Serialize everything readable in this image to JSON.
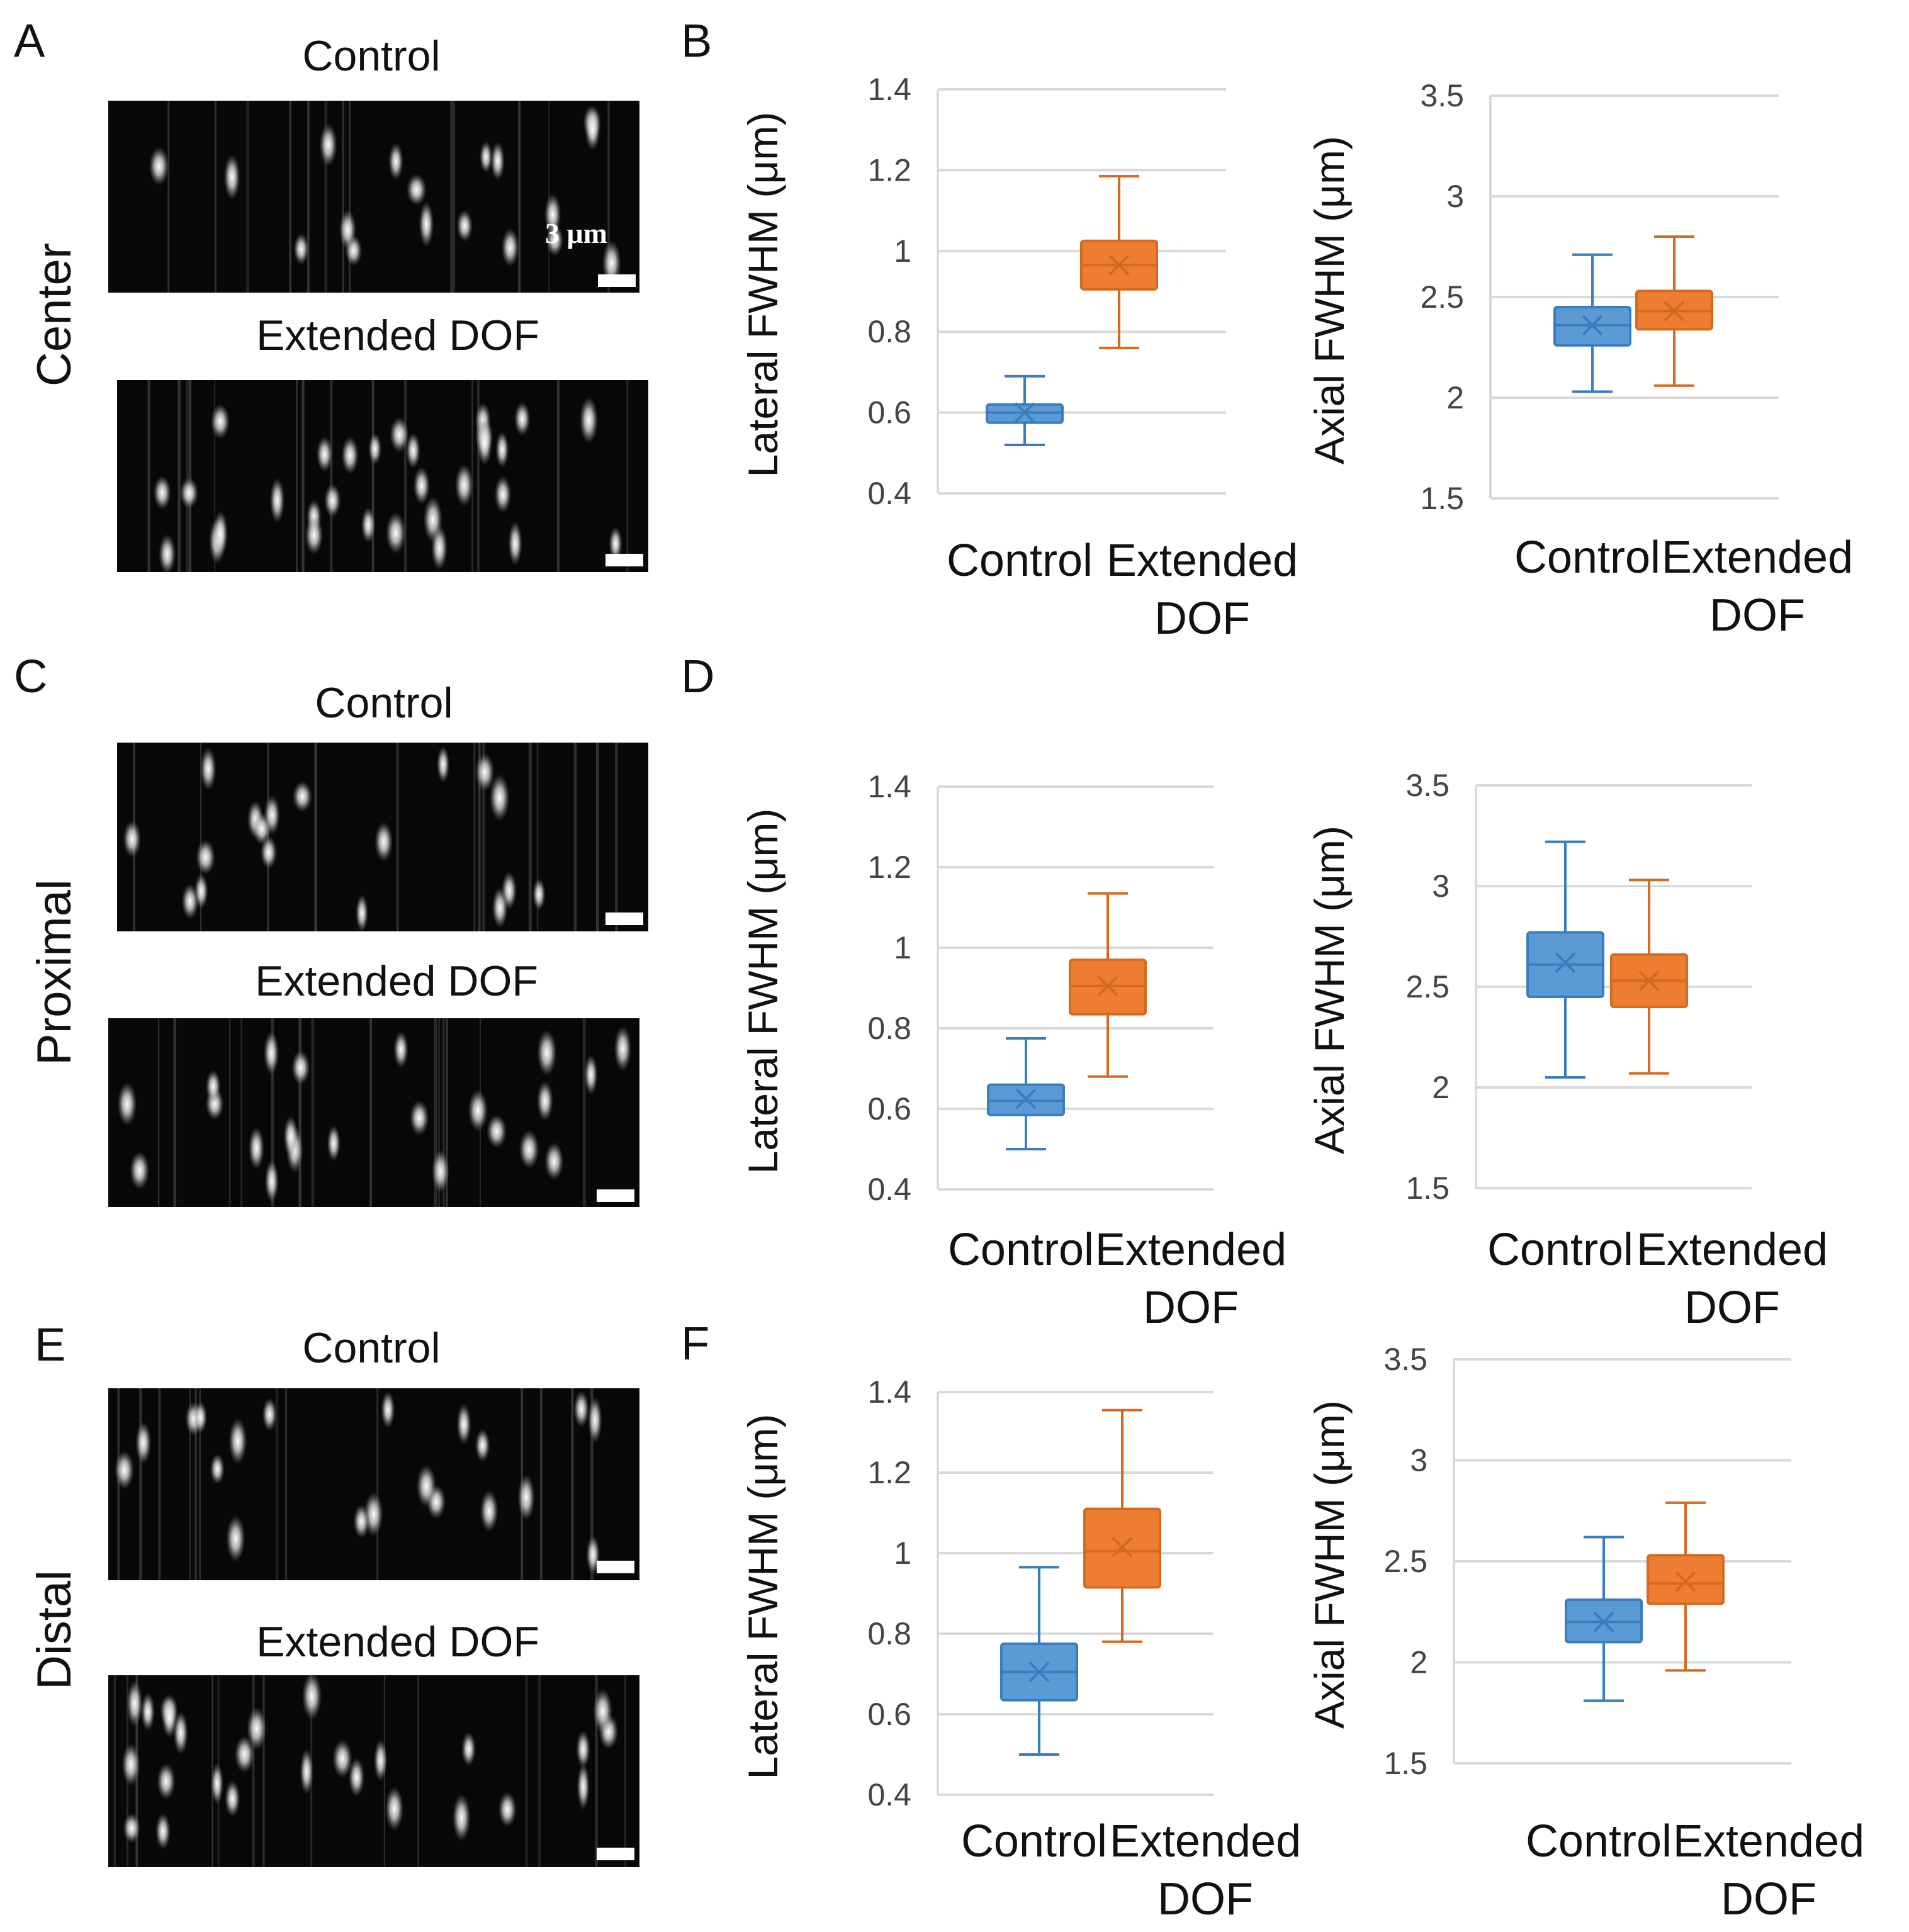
{
  "panel_letters": {
    "a": "A",
    "b": "B",
    "c": "C",
    "d": "D",
    "e": "E",
    "f": "F"
  },
  "row_labels": {
    "center": "Center",
    "proximal": "Proximal",
    "distal": "Distal"
  },
  "image_titles": {
    "control": "Control",
    "extended": "Extended DOF"
  },
  "scale_bar_label": "3 μm",
  "colors": {
    "control": "#5b9bd5",
    "extended": "#ed7d31",
    "control_line": "#3a7cc0",
    "extended_line": "#d46a1f"
  },
  "chart_data": [
    {
      "id": "B-lateral",
      "panel": "B",
      "type": "box",
      "ylabel": "Lateral FWHM (μm)",
      "ylim": [
        0.4,
        1.4
      ],
      "yticks": [
        "0.4",
        "0.6",
        "0.8",
        "1",
        "1.2",
        "1.4"
      ],
      "categories": [
        "Control",
        "Extended DOF"
      ],
      "boxes": [
        {
          "name": "Control",
          "min": 0.52,
          "q1": 0.575,
          "median": 0.6,
          "q3": 0.62,
          "max": 0.69,
          "mean": 0.6
        },
        {
          "name": "Extended DOF",
          "min": 0.76,
          "q1": 0.905,
          "median": 0.965,
          "q3": 1.025,
          "max": 1.185,
          "mean": 0.965
        }
      ]
    },
    {
      "id": "B-axial",
      "panel": "B",
      "type": "box",
      "ylabel": "Axial FWHM (μm)",
      "ylim": [
        1.5,
        3.5
      ],
      "yticks": [
        "1.5",
        "2",
        "2.5",
        "3",
        "3.5"
      ],
      "categories": [
        "Control",
        "Extended DOF"
      ],
      "boxes": [
        {
          "name": "Control",
          "min": 2.03,
          "q1": 2.26,
          "median": 2.36,
          "q3": 2.45,
          "max": 2.71,
          "mean": 2.36
        },
        {
          "name": "Extended DOF",
          "min": 2.06,
          "q1": 2.34,
          "median": 2.43,
          "q3": 2.53,
          "max": 2.8,
          "mean": 2.43
        }
      ]
    },
    {
      "id": "D-lateral",
      "panel": "D",
      "type": "box",
      "ylabel": "Lateral FWHM (μm)",
      "ylim": [
        0.4,
        1.4
      ],
      "yticks": [
        "0.4",
        "0.6",
        "0.8",
        "1",
        "1.2",
        "1.4"
      ],
      "categories": [
        "Control",
        "Extended DOF"
      ],
      "boxes": [
        {
          "name": "Control",
          "min": 0.5,
          "q1": 0.585,
          "median": 0.62,
          "q3": 0.66,
          "max": 0.775,
          "mean": 0.625
        },
        {
          "name": "Extended DOF",
          "min": 0.68,
          "q1": 0.835,
          "median": 0.905,
          "q3": 0.97,
          "max": 1.135,
          "mean": 0.905
        }
      ]
    },
    {
      "id": "D-axial",
      "panel": "D",
      "type": "box",
      "ylabel": "Axial FWHM (μm)",
      "ylim": [
        1.5,
        3.5
      ],
      "yticks": [
        "1.5",
        "2",
        "2.5",
        "3",
        "3.5"
      ],
      "categories": [
        "Control",
        "Extended DOF"
      ],
      "boxes": [
        {
          "name": "Control",
          "min": 2.05,
          "q1": 2.45,
          "median": 2.61,
          "q3": 2.77,
          "max": 3.22,
          "mean": 2.62
        },
        {
          "name": "Extended DOF",
          "min": 2.07,
          "q1": 2.4,
          "median": 2.53,
          "q3": 2.66,
          "max": 3.03,
          "mean": 2.53
        }
      ]
    },
    {
      "id": "F-lateral",
      "panel": "F",
      "type": "box",
      "ylabel": "Lateral FWHM (μm)",
      "ylim": [
        0.4,
        1.4
      ],
      "yticks": [
        "0.4",
        "0.6",
        "0.8",
        "1",
        "1.2",
        "1.4"
      ],
      "categories": [
        "Control",
        "Extended DOF"
      ],
      "boxes": [
        {
          "name": "Control",
          "min": 0.5,
          "q1": 0.635,
          "median": 0.705,
          "q3": 0.775,
          "max": 0.965,
          "mean": 0.705
        },
        {
          "name": "Extended DOF",
          "min": 0.78,
          "q1": 0.915,
          "median": 1.005,
          "q3": 1.11,
          "max": 1.355,
          "mean": 1.015
        }
      ]
    },
    {
      "id": "F-axial",
      "panel": "F",
      "type": "box",
      "ylabel": "Axial FWHM (μm)",
      "ylim": [
        1.5,
        3.5
      ],
      "yticks": [
        "1.5",
        "2",
        "2.5",
        "3",
        "3.5"
      ],
      "categories": [
        "Control",
        "Extended DOF"
      ],
      "boxes": [
        {
          "name": "Control",
          "min": 1.81,
          "q1": 2.1,
          "median": 2.2,
          "q3": 2.31,
          "max": 2.62,
          "mean": 2.2
        },
        {
          "name": "Extended DOF",
          "min": 1.96,
          "q1": 2.29,
          "median": 2.39,
          "q3": 2.53,
          "max": 2.79,
          "mean": 2.4
        }
      ]
    }
  ]
}
